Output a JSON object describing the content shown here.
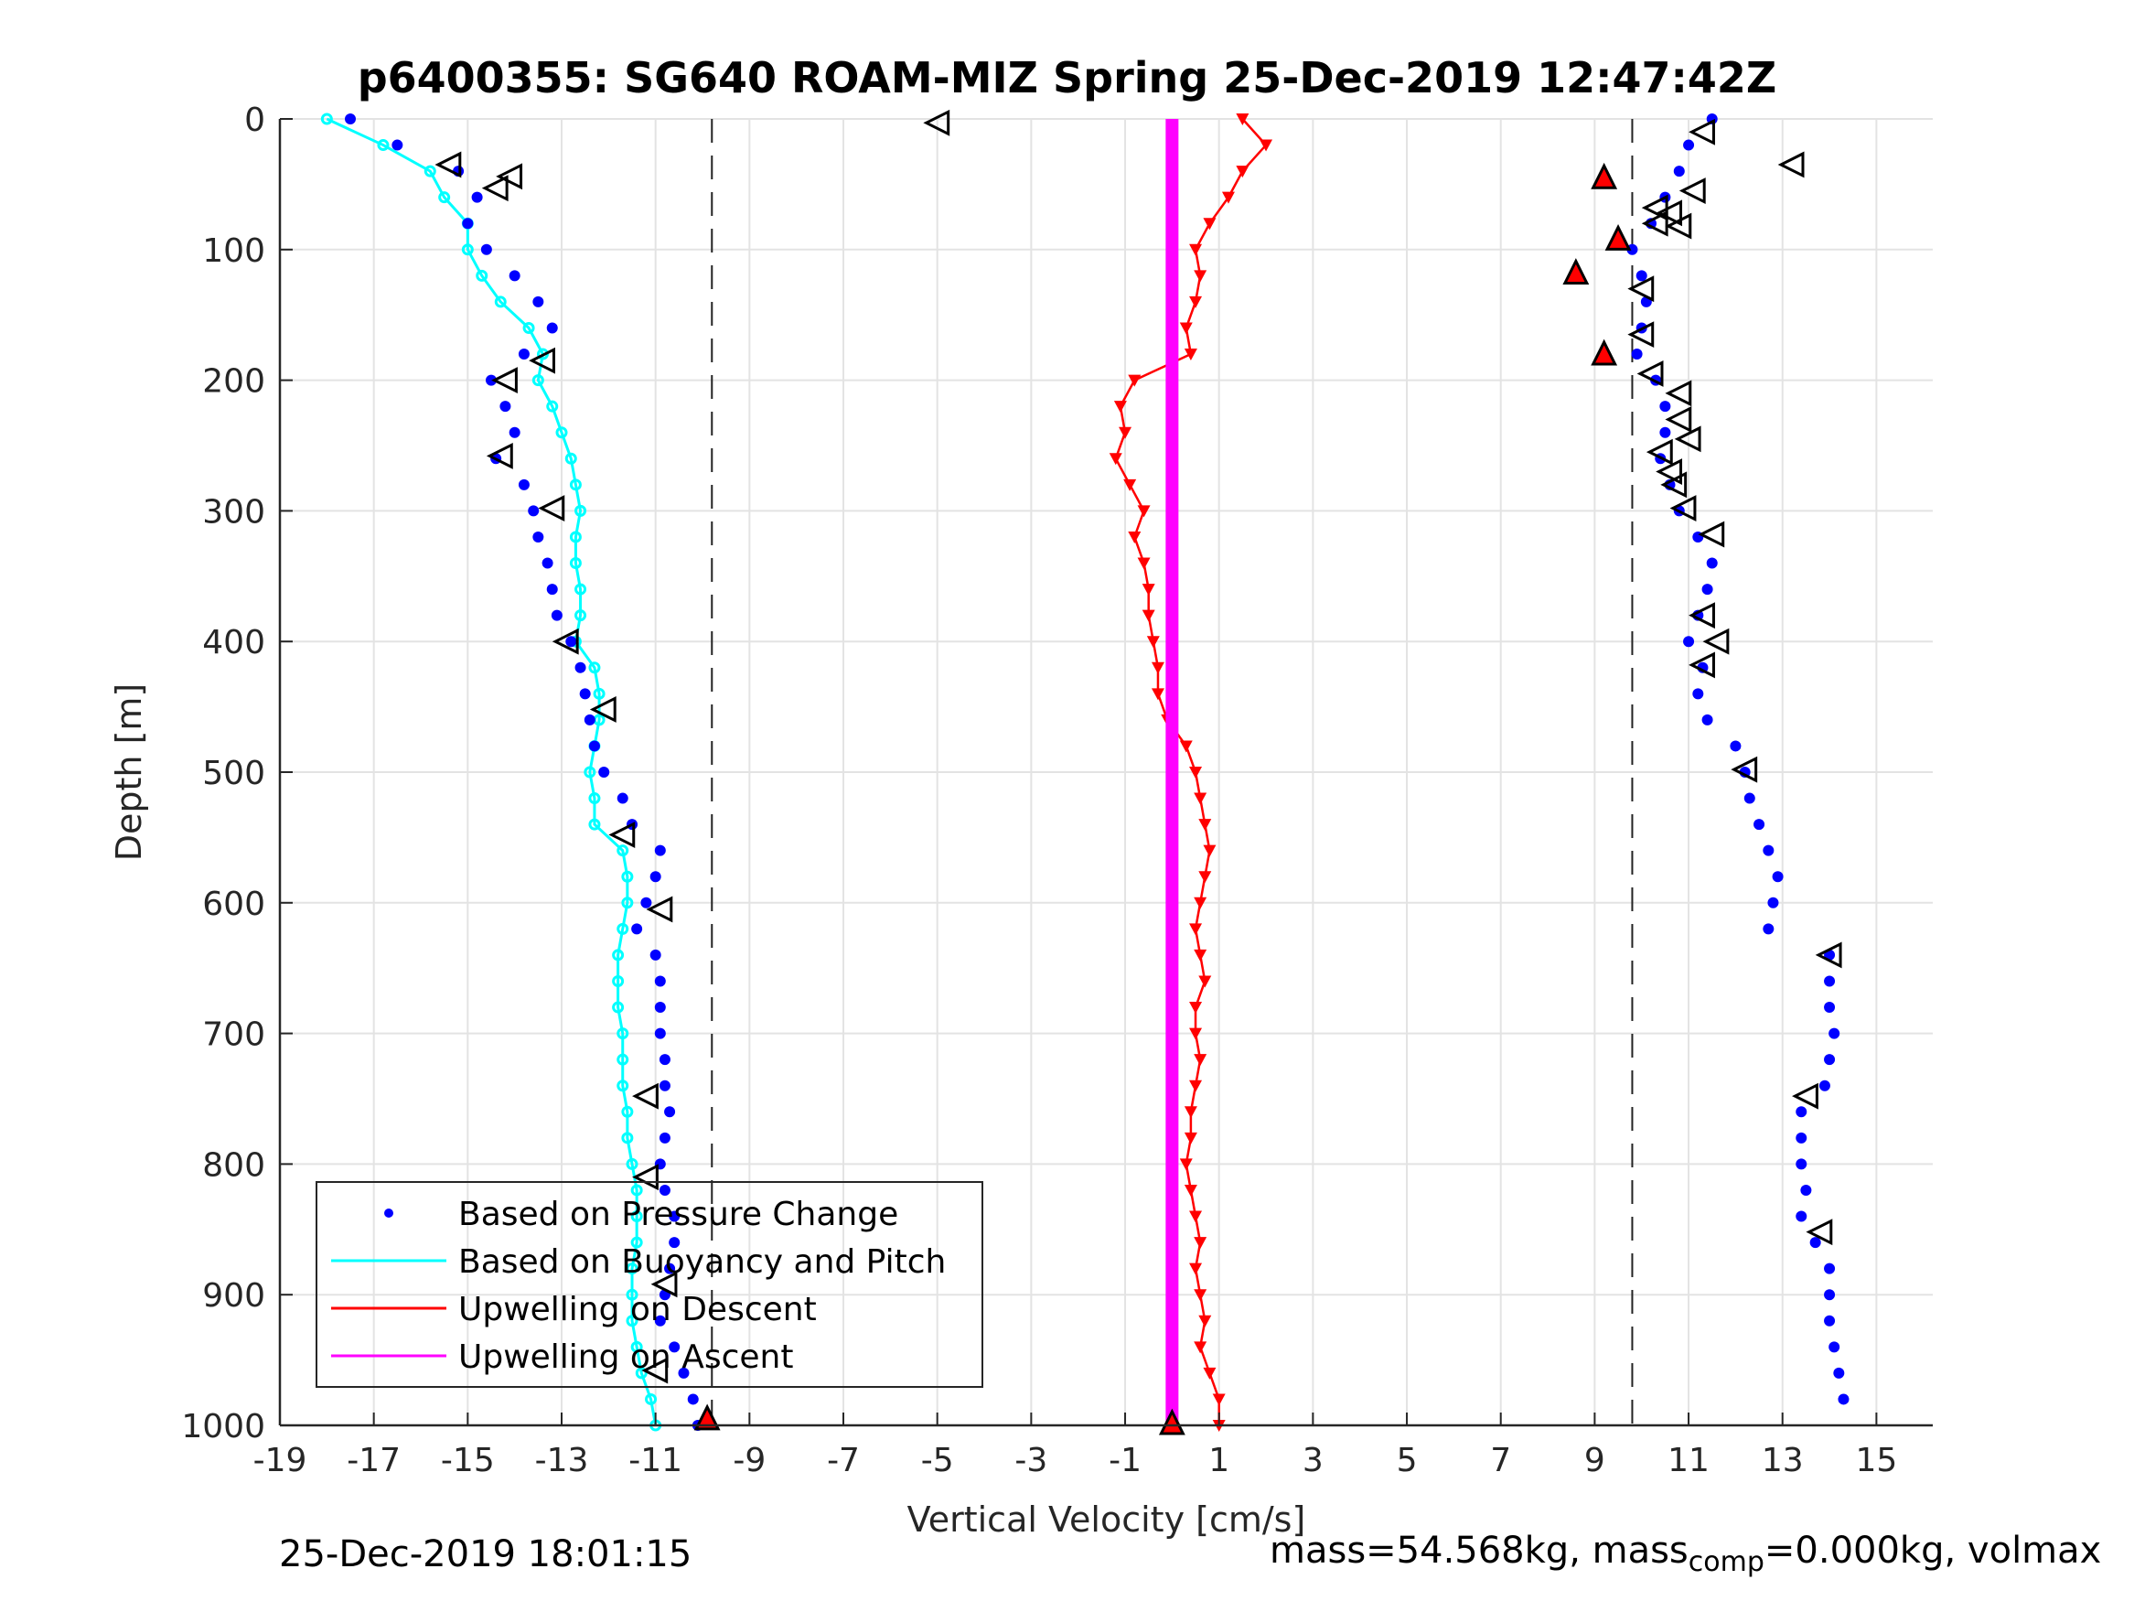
{
  "figure": {
    "title": "p6400355: SG640 ROAM-MIZ Spring 25-Dec-2019 12:47:42Z",
    "footer_left": "25-Dec-2019 18:01:15",
    "footer_right_a": "mass=54.568kg, mass",
    "footer_right_sub": "comp",
    "footer_right_b": "=0.000kg, volmax"
  },
  "chart_data": {
    "type": "scatter",
    "title": "p6400355: SG640 ROAM-MIZ Spring 25-Dec-2019 12:47:42Z",
    "xlabel": "Vertical Velocity [cm/s]",
    "ylabel": "Depth [m]",
    "xlim": [
      -19,
      16.2
    ],
    "ylim": [
      1000,
      0
    ],
    "y_reversed": true,
    "grid": true,
    "legend_position": "bottom-left",
    "xticks": [
      -19,
      -17,
      -15,
      -13,
      -11,
      -9,
      -7,
      -5,
      -3,
      -1,
      1,
      3,
      5,
      7,
      9,
      11,
      13,
      15
    ],
    "yticks": [
      0,
      100,
      200,
      300,
      400,
      500,
      600,
      700,
      800,
      900,
      1000
    ],
    "reference_lines_x": [
      -9.8,
      9.8
    ],
    "colors": {
      "pressure": "#0000ff",
      "buoyancy": "#00ffff",
      "upwelling_descent": "#ff0000",
      "upwelling_ascent": "#ff00ff"
    },
    "series": [
      {
        "name": "Based on Pressure Change",
        "style": "dots",
        "descent": {
          "depth": [
            0,
            20,
            40,
            60,
            80,
            100,
            120,
            140,
            160,
            180,
            200,
            220,
            240,
            260,
            280,
            300,
            320,
            340,
            360,
            380,
            400,
            420,
            440,
            460,
            480,
            500,
            520,
            540,
            560,
            580,
            600,
            620,
            640,
            660,
            680,
            700,
            720,
            740,
            760,
            780,
            800,
            820,
            840,
            860,
            880,
            900,
            920,
            940,
            960,
            980,
            1000
          ],
          "velocity": [
            -17.5,
            -16.5,
            -15.2,
            -14.8,
            -15.0,
            -14.6,
            -14.0,
            -13.5,
            -13.2,
            -13.8,
            -14.5,
            -14.2,
            -14.0,
            -14.4,
            -13.8,
            -13.6,
            -13.5,
            -13.3,
            -13.2,
            -13.1,
            -12.8,
            -12.6,
            -12.5,
            -12.4,
            -12.3,
            -12.1,
            -11.7,
            -11.5,
            -10.9,
            -11.0,
            -11.2,
            -11.4,
            -11.0,
            -10.9,
            -10.9,
            -10.9,
            -10.8,
            -10.8,
            -10.7,
            -10.8,
            -10.9,
            -10.8,
            -10.6,
            -10.6,
            -10.7,
            -10.8,
            -10.9,
            -10.6,
            -10.4,
            -10.2,
            -10.1
          ]
        },
        "ascent": {
          "depth": [
            0,
            20,
            40,
            60,
            80,
            100,
            120,
            140,
            160,
            180,
            200,
            220,
            240,
            260,
            280,
            300,
            320,
            340,
            360,
            380,
            400,
            420,
            440,
            460,
            480,
            500,
            520,
            540,
            560,
            580,
            600,
            620,
            640,
            660,
            680,
            700,
            720,
            740,
            760,
            780,
            800,
            820,
            840,
            860,
            880,
            900,
            920,
            940,
            960,
            980
          ],
          "velocity": [
            11.5,
            11.0,
            10.8,
            10.5,
            10.2,
            9.8,
            10.0,
            10.1,
            10.0,
            9.9,
            10.3,
            10.5,
            10.5,
            10.4,
            10.6,
            10.8,
            11.2,
            11.5,
            11.4,
            11.2,
            11.0,
            11.3,
            11.2,
            11.4,
            12.0,
            12.2,
            12.3,
            12.5,
            12.7,
            12.9,
            12.8,
            12.7,
            14.0,
            14.0,
            14.0,
            14.1,
            14.0,
            13.9,
            13.4,
            13.4,
            13.4,
            13.5,
            13.4,
            13.7,
            14.0,
            14.0,
            14.0,
            14.1,
            14.2,
            14.3
          ]
        }
      },
      {
        "name": "Based on Buoyancy and Pitch",
        "style": "line-markers",
        "descent": {
          "depth": [
            0,
            20,
            40,
            60,
            80,
            100,
            120,
            140,
            160,
            180,
            200,
            220,
            240,
            260,
            280,
            300,
            320,
            340,
            360,
            380,
            400,
            420,
            440,
            460,
            480,
            500,
            520,
            540,
            560,
            580,
            600,
            620,
            640,
            660,
            680,
            700,
            720,
            740,
            760,
            780,
            800,
            820,
            840,
            860,
            880,
            900,
            920,
            940,
            960,
            980,
            1000
          ],
          "velocity": [
            -18.0,
            -16.8,
            -15.8,
            -15.5,
            -15.0,
            -15.0,
            -14.7,
            -14.3,
            -13.7,
            -13.4,
            -13.5,
            -13.2,
            -13.0,
            -12.8,
            -12.7,
            -12.6,
            -12.7,
            -12.7,
            -12.6,
            -12.6,
            -12.7,
            -12.3,
            -12.2,
            -12.2,
            -12.3,
            -12.4,
            -12.3,
            -12.3,
            -11.7,
            -11.6,
            -11.6,
            -11.7,
            -11.8,
            -11.8,
            -11.8,
            -11.7,
            -11.7,
            -11.7,
            -11.6,
            -11.6,
            -11.5,
            -11.4,
            -11.4,
            -11.4,
            -11.5,
            -11.5,
            -11.5,
            -11.4,
            -11.3,
            -11.1,
            -11.0
          ]
        }
      },
      {
        "name": "Upwelling on Descent",
        "style": "line-markers",
        "depth": [
          0,
          20,
          40,
          60,
          80,
          100,
          120,
          140,
          160,
          180,
          200,
          220,
          240,
          260,
          280,
          300,
          320,
          340,
          360,
          380,
          400,
          420,
          440,
          460,
          480,
          500,
          520,
          540,
          560,
          580,
          600,
          620,
          640,
          660,
          680,
          700,
          720,
          740,
          760,
          780,
          800,
          820,
          840,
          860,
          880,
          900,
          920,
          940,
          960,
          980,
          1000
        ],
        "velocity": [
          1.5,
          2.0,
          1.5,
          1.2,
          0.8,
          0.5,
          0.6,
          0.5,
          0.3,
          0.4,
          -0.8,
          -1.1,
          -1.0,
          -1.2,
          -0.9,
          -0.6,
          -0.8,
          -0.6,
          -0.5,
          -0.5,
          -0.4,
          -0.3,
          -0.3,
          -0.1,
          0.3,
          0.5,
          0.6,
          0.7,
          0.8,
          0.7,
          0.6,
          0.5,
          0.6,
          0.7,
          0.5,
          0.5,
          0.6,
          0.5,
          0.4,
          0.4,
          0.3,
          0.4,
          0.5,
          0.6,
          0.5,
          0.6,
          0.7,
          0.6,
          0.8,
          1.0,
          1.0
        ]
      },
      {
        "name": "Upwelling on Ascent",
        "style": "line",
        "depth": [
          0,
          1000
        ],
        "velocity": [
          0.0,
          0.0
        ]
      }
    ],
    "markers": {
      "open_triangles": [
        {
          "x": -5.0,
          "y": 3
        },
        {
          "x": -15.4,
          "y": 35
        },
        {
          "x": -14.1,
          "y": 44
        },
        {
          "x": -14.4,
          "y": 53
        },
        {
          "x": -13.4,
          "y": 185
        },
        {
          "x": -14.2,
          "y": 200
        },
        {
          "x": -14.3,
          "y": 258
        },
        {
          "x": -13.2,
          "y": 298
        },
        {
          "x": -12.9,
          "y": 400
        },
        {
          "x": -12.1,
          "y": 452
        },
        {
          "x": -11.7,
          "y": 548
        },
        {
          "x": -10.9,
          "y": 605
        },
        {
          "x": -11.2,
          "y": 748
        },
        {
          "x": -11.2,
          "y": 810
        },
        {
          "x": -10.8,
          "y": 892
        },
        {
          "x": -11.0,
          "y": 958
        },
        {
          "x": 11.3,
          "y": 10
        },
        {
          "x": 13.2,
          "y": 35
        },
        {
          "x": 11.1,
          "y": 55
        },
        {
          "x": 10.3,
          "y": 68
        },
        {
          "x": 10.6,
          "y": 72
        },
        {
          "x": 10.3,
          "y": 80
        },
        {
          "x": 10.8,
          "y": 82
        },
        {
          "x": 10.0,
          "y": 130
        },
        {
          "x": 10.0,
          "y": 165
        },
        {
          "x": 10.2,
          "y": 195
        },
        {
          "x": 10.8,
          "y": 210
        },
        {
          "x": 10.8,
          "y": 230
        },
        {
          "x": 11.0,
          "y": 245
        },
        {
          "x": 10.4,
          "y": 255
        },
        {
          "x": 10.6,
          "y": 270
        },
        {
          "x": 10.7,
          "y": 280
        },
        {
          "x": 10.9,
          "y": 298
        },
        {
          "x": 11.5,
          "y": 318
        },
        {
          "x": 11.3,
          "y": 380
        },
        {
          "x": 11.6,
          "y": 400
        },
        {
          "x": 11.3,
          "y": 418
        },
        {
          "x": 12.2,
          "y": 498
        },
        {
          "x": 14.0,
          "y": 640
        },
        {
          "x": 13.5,
          "y": 748
        },
        {
          "x": 13.8,
          "y": 852
        }
      ],
      "red_triangles": [
        {
          "x": -9.9,
          "y": 995
        },
        {
          "x": 9.2,
          "y": 45
        },
        {
          "x": 9.5,
          "y": 92
        },
        {
          "x": 8.6,
          "y": 118
        },
        {
          "x": 9.2,
          "y": 180
        }
      ],
      "bottom_marker": {
        "x": 0.0,
        "y": 1000
      }
    }
  }
}
